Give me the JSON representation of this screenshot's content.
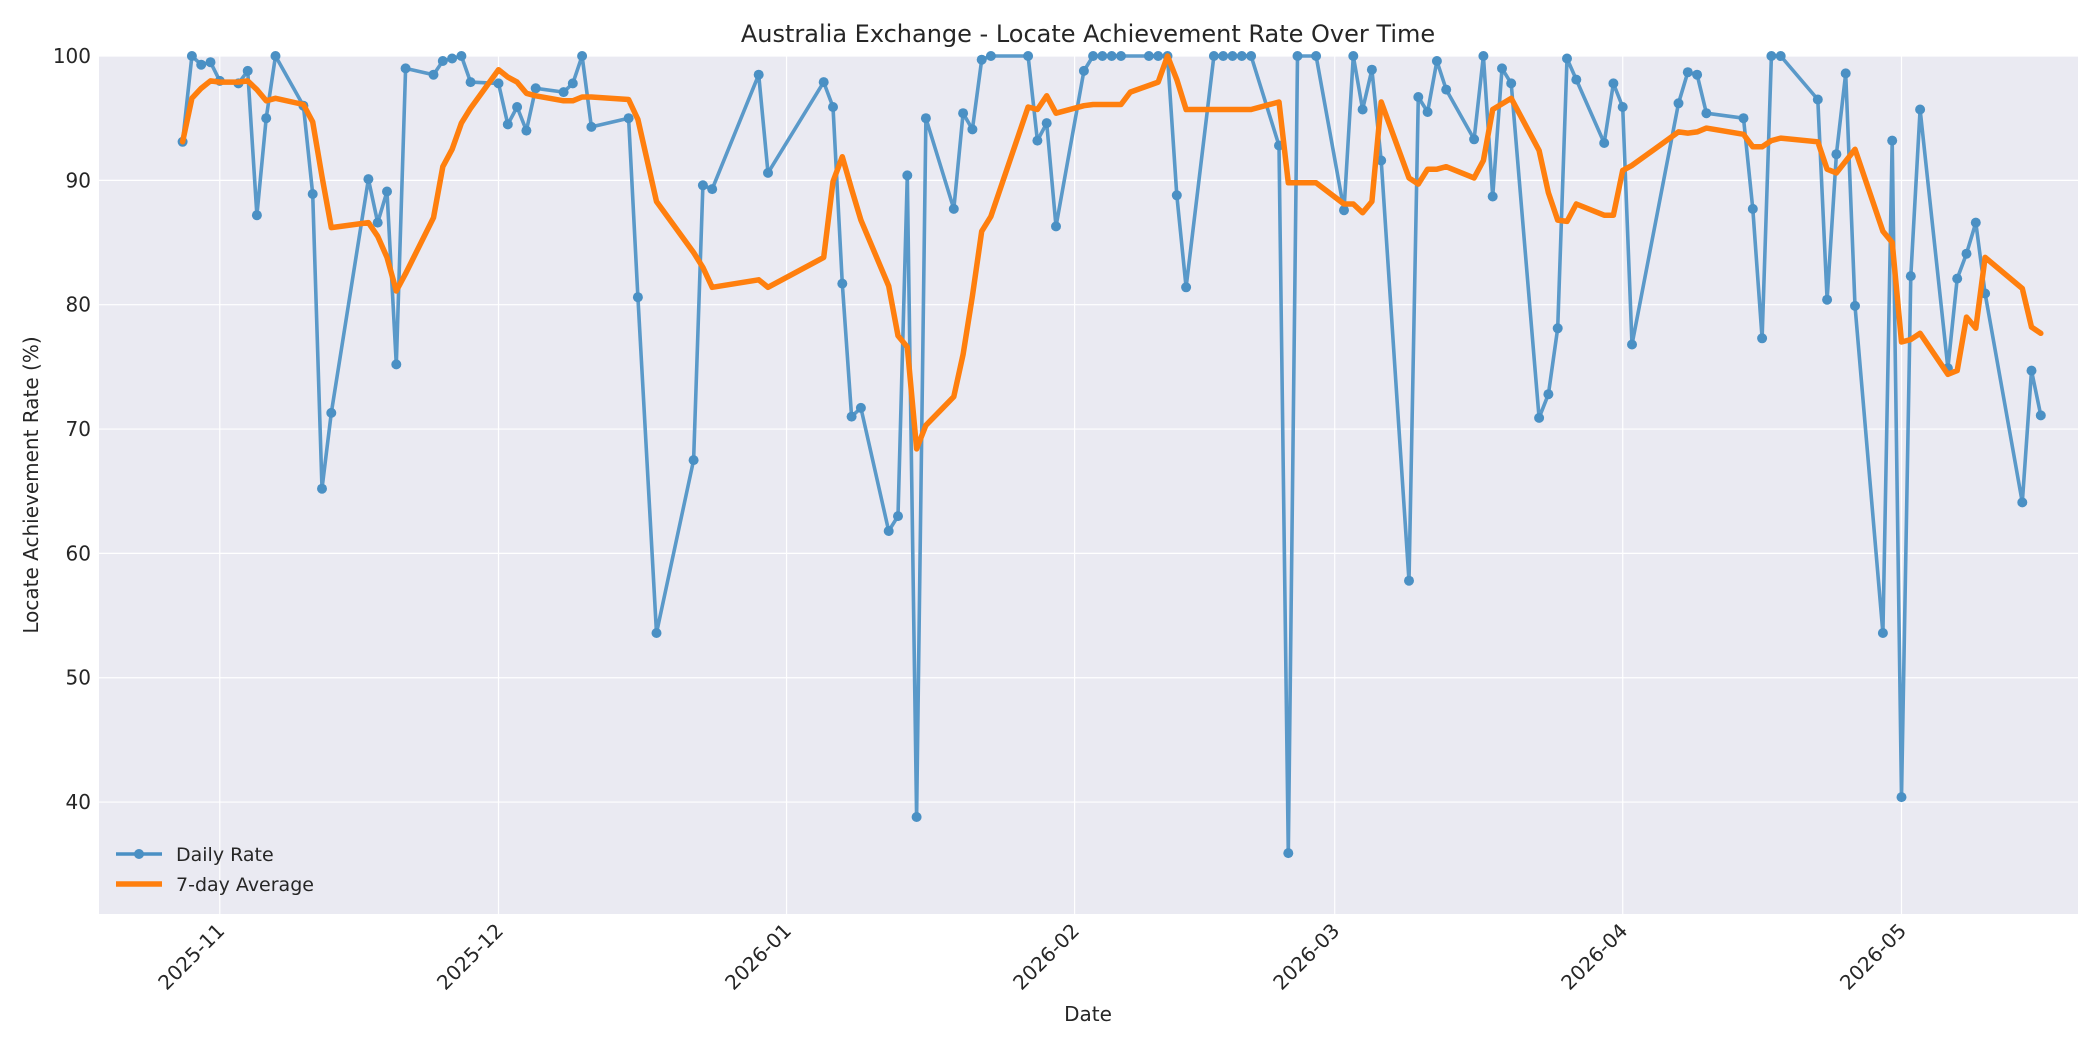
{
  "chart_data": {
    "type": "line",
    "title": "Australia Exchange - Locate Achievement Rate Over Time",
    "xlabel": "Date",
    "ylabel": "Locate Achievement Rate (%)",
    "xlim": [
      "2025-10-19",
      "2026-05-20"
    ],
    "ylim": [
      31,
      100
    ],
    "yticks": [
      40,
      50,
      60,
      70,
      80,
      90,
      100
    ],
    "xticks": [
      "2025-11-01",
      "2025-12-01",
      "2026-01-01",
      "2026-02-01",
      "2026-03-01",
      "2026-04-01",
      "2026-05-01"
    ],
    "xtick_labels": [
      "2025-11",
      "2025-12",
      "2026-01",
      "2026-02",
      "2026-03",
      "2026-04",
      "2026-05"
    ],
    "grid": true,
    "legend_position": "lower-left",
    "series": [
      {
        "name": "Daily Rate",
        "color": "#4a90c4",
        "style": "line-with-markers",
        "points": [
          [
            "2025-10-28",
            93.1
          ],
          [
            "2025-10-29",
            100.0
          ],
          [
            "2025-10-30",
            99.3
          ],
          [
            "2025-10-31",
            99.5
          ],
          [
            "2025-11-01",
            98.0
          ],
          [
            "2025-11-03",
            97.8
          ],
          [
            "2025-11-04",
            98.8
          ],
          [
            "2025-11-05",
            87.2
          ],
          [
            "2025-11-06",
            95.0
          ],
          [
            "2025-11-07",
            100.0
          ],
          [
            "2025-11-10",
            96.0
          ],
          [
            "2025-11-11",
            88.9
          ],
          [
            "2025-11-12",
            65.2
          ],
          [
            "2025-11-13",
            71.3
          ],
          [
            "2025-11-17",
            90.1
          ],
          [
            "2025-11-18",
            86.6
          ],
          [
            "2025-11-19",
            89.1
          ],
          [
            "2025-11-20",
            75.2
          ],
          [
            "2025-11-21",
            99.0
          ],
          [
            "2025-11-24",
            98.5
          ],
          [
            "2025-11-25",
            99.6
          ],
          [
            "2025-11-26",
            99.8
          ],
          [
            "2025-11-27",
            100.0
          ],
          [
            "2025-11-28",
            97.9
          ],
          [
            "2025-12-01",
            97.8
          ],
          [
            "2025-12-02",
            94.5
          ],
          [
            "2025-12-03",
            95.9
          ],
          [
            "2025-12-04",
            94.0
          ],
          [
            "2025-12-05",
            97.4
          ],
          [
            "2025-12-08",
            97.1
          ],
          [
            "2025-12-09",
            97.8
          ],
          [
            "2025-12-10",
            100.0
          ],
          [
            "2025-12-11",
            94.3
          ],
          [
            "2025-12-15",
            95.0
          ],
          [
            "2025-12-16",
            80.6
          ],
          [
            "2025-12-18",
            53.6
          ],
          [
            "2025-12-22",
            67.5
          ],
          [
            "2025-12-23",
            89.6
          ],
          [
            "2025-12-24",
            89.3
          ],
          [
            "2025-12-29",
            98.5
          ],
          [
            "2025-12-30",
            90.6
          ],
          [
            "2026-01-05",
            97.9
          ],
          [
            "2026-01-06",
            95.9
          ],
          [
            "2026-01-07",
            81.7
          ],
          [
            "2026-01-08",
            71.0
          ],
          [
            "2026-01-09",
            71.7
          ],
          [
            "2026-01-12",
            61.8
          ],
          [
            "2026-01-13",
            63.0
          ],
          [
            "2026-01-14",
            90.4
          ],
          [
            "2026-01-15",
            38.8
          ],
          [
            "2026-01-16",
            95.0
          ],
          [
            "2026-01-19",
            87.7
          ],
          [
            "2026-01-20",
            95.4
          ],
          [
            "2026-01-21",
            94.1
          ],
          [
            "2026-01-22",
            99.7
          ],
          [
            "2026-01-23",
            100.0
          ],
          [
            "2026-01-27",
            100.0
          ],
          [
            "2026-01-28",
            93.2
          ],
          [
            "2026-01-29",
            94.6
          ],
          [
            "2026-01-30",
            86.3
          ],
          [
            "2026-02-02",
            98.8
          ],
          [
            "2026-02-03",
            100.0
          ],
          [
            "2026-02-04",
            100.0
          ],
          [
            "2026-02-05",
            100.0
          ],
          [
            "2026-02-06",
            100.0
          ],
          [
            "2026-02-09",
            100.0
          ],
          [
            "2026-02-10",
            100.0
          ],
          [
            "2026-02-11",
            100.0
          ],
          [
            "2026-02-12",
            88.8
          ],
          [
            "2026-02-13",
            81.4
          ],
          [
            "2026-02-16",
            100.0
          ],
          [
            "2026-02-17",
            100.0
          ],
          [
            "2026-02-18",
            100.0
          ],
          [
            "2026-02-19",
            100.0
          ],
          [
            "2026-02-20",
            100.0
          ],
          [
            "2026-02-23",
            92.8
          ],
          [
            "2026-02-24",
            35.9
          ],
          [
            "2026-02-25",
            100.0
          ],
          [
            "2026-02-27",
            100.0
          ],
          [
            "2026-03-02",
            87.6
          ],
          [
            "2026-03-03",
            100.0
          ],
          [
            "2026-03-04",
            95.7
          ],
          [
            "2026-03-05",
            98.9
          ],
          [
            "2026-03-06",
            91.6
          ],
          [
            "2026-03-09",
            57.8
          ],
          [
            "2026-03-10",
            96.7
          ],
          [
            "2026-03-11",
            95.5
          ],
          [
            "2026-03-12",
            99.6
          ],
          [
            "2026-03-13",
            97.3
          ],
          [
            "2026-03-16",
            93.3
          ],
          [
            "2026-03-17",
            100.0
          ],
          [
            "2026-03-18",
            88.7
          ],
          [
            "2026-03-19",
            99.0
          ],
          [
            "2026-03-20",
            97.8
          ],
          [
            "2026-03-23",
            70.9
          ],
          [
            "2026-03-24",
            72.8
          ],
          [
            "2026-03-25",
            78.1
          ],
          [
            "2026-03-26",
            99.8
          ],
          [
            "2026-03-27",
            98.1
          ],
          [
            "2026-03-30",
            93.0
          ],
          [
            "2026-03-31",
            97.8
          ],
          [
            "2026-04-01",
            95.9
          ],
          [
            "2026-04-02",
            76.8
          ],
          [
            "2026-04-07",
            96.2
          ],
          [
            "2026-04-08",
            98.7
          ],
          [
            "2026-04-09",
            98.5
          ],
          [
            "2026-04-10",
            95.4
          ],
          [
            "2026-04-14",
            95.0
          ],
          [
            "2026-04-15",
            87.7
          ],
          [
            "2026-04-16",
            77.3
          ],
          [
            "2026-04-17",
            100.0
          ],
          [
            "2026-04-18",
            100.0
          ],
          [
            "2026-04-22",
            96.5
          ],
          [
            "2026-04-23",
            80.4
          ],
          [
            "2026-04-24",
            92.1
          ],
          [
            "2026-04-25",
            98.6
          ],
          [
            "2026-04-26",
            79.9
          ],
          [
            "2026-04-29",
            53.6
          ],
          [
            "2026-04-30",
            93.2
          ],
          [
            "2026-05-01",
            40.4
          ],
          [
            "2026-05-02",
            82.3
          ],
          [
            "2026-05-03",
            95.7
          ],
          [
            "2026-05-06",
            74.9
          ],
          [
            "2026-05-07",
            82.1
          ],
          [
            "2026-05-08",
            84.1
          ],
          [
            "2026-05-09",
            86.6
          ],
          [
            "2026-05-10",
            80.9
          ],
          [
            "2026-05-14",
            64.1
          ],
          [
            "2026-05-15",
            74.7
          ],
          [
            "2026-05-16",
            71.1
          ]
        ]
      },
      {
        "name": "7-day Average",
        "color": "#ff7f0e",
        "style": "line",
        "points": [
          [
            "2025-10-28",
            93.1
          ],
          [
            "2025-10-29",
            96.6
          ],
          [
            "2025-10-30",
            97.4
          ],
          [
            "2025-10-31",
            98.0
          ],
          [
            "2025-11-01",
            97.9
          ],
          [
            "2025-11-03",
            97.9
          ],
          [
            "2025-11-04",
            98.0
          ],
          [
            "2025-11-05",
            97.3
          ],
          [
            "2025-11-06",
            96.4
          ],
          [
            "2025-11-07",
            96.6
          ],
          [
            "2025-11-10",
            96.1
          ],
          [
            "2025-11-11",
            94.7
          ],
          [
            "2025-11-12",
            90.3
          ],
          [
            "2025-11-13",
            86.2
          ],
          [
            "2025-11-17",
            86.6
          ],
          [
            "2025-11-18",
            85.5
          ],
          [
            "2025-11-19",
            83.8
          ],
          [
            "2025-11-20",
            81.1
          ],
          [
            "2025-11-21",
            82.5
          ],
          [
            "2025-11-24",
            87.0
          ],
          [
            "2025-11-25",
            91.1
          ],
          [
            "2025-11-26",
            92.5
          ],
          [
            "2025-11-27",
            94.6
          ],
          [
            "2025-11-28",
            95.8
          ],
          [
            "2025-12-01",
            98.9
          ],
          [
            "2025-12-02",
            98.3
          ],
          [
            "2025-12-03",
            97.9
          ],
          [
            "2025-12-04",
            97.0
          ],
          [
            "2025-12-05",
            96.8
          ],
          [
            "2025-12-08",
            96.4
          ],
          [
            "2025-12-09",
            96.4
          ],
          [
            "2025-12-10",
            96.7
          ],
          [
            "2025-12-11",
            96.7
          ],
          [
            "2025-12-15",
            96.5
          ],
          [
            "2025-12-16",
            94.9
          ],
          [
            "2025-12-18",
            88.3
          ],
          [
            "2025-12-22",
            84.2
          ],
          [
            "2025-12-23",
            83.0
          ],
          [
            "2025-12-24",
            81.4
          ],
          [
            "2025-12-29",
            82.0
          ],
          [
            "2025-12-30",
            81.4
          ],
          [
            "2026-01-05",
            83.8
          ],
          [
            "2026-01-06",
            89.9
          ],
          [
            "2026-01-07",
            91.9
          ],
          [
            "2026-01-08",
            89.3
          ],
          [
            "2026-01-09",
            86.8
          ],
          [
            "2026-01-12",
            81.5
          ],
          [
            "2026-01-13",
            77.5
          ],
          [
            "2026-01-14",
            76.6
          ],
          [
            "2026-01-15",
            68.4
          ],
          [
            "2026-01-16",
            70.3
          ],
          [
            "2026-01-19",
            72.6
          ],
          [
            "2026-01-20",
            76.0
          ],
          [
            "2026-01-21",
            80.7
          ],
          [
            "2026-01-22",
            85.9
          ],
          [
            "2026-01-23",
            87.1
          ],
          [
            "2026-01-27",
            95.9
          ],
          [
            "2026-01-28",
            95.7
          ],
          [
            "2026-01-29",
            96.8
          ],
          [
            "2026-01-30",
            95.4
          ],
          [
            "2026-02-02",
            96.0
          ],
          [
            "2026-02-03",
            96.1
          ],
          [
            "2026-02-04",
            96.1
          ],
          [
            "2026-02-05",
            96.1
          ],
          [
            "2026-02-06",
            96.1
          ],
          [
            "2026-02-07",
            97.1
          ],
          [
            "2026-02-10",
            97.9
          ],
          [
            "2026-02-11",
            100.0
          ],
          [
            "2026-02-12",
            98.1
          ],
          [
            "2026-02-13",
            95.7
          ],
          [
            "2026-02-16",
            95.7
          ],
          [
            "2026-02-17",
            95.7
          ],
          [
            "2026-02-18",
            95.7
          ],
          [
            "2026-02-19",
            95.7
          ],
          [
            "2026-02-20",
            95.7
          ],
          [
            "2026-02-23",
            96.3
          ],
          [
            "2026-02-24",
            89.8
          ],
          [
            "2026-02-27",
            89.8
          ],
          [
            "2026-03-02",
            88.1
          ],
          [
            "2026-03-03",
            88.1
          ],
          [
            "2026-03-04",
            87.4
          ],
          [
            "2026-03-05",
            88.3
          ],
          [
            "2026-03-06",
            96.3
          ],
          [
            "2026-03-09",
            90.2
          ],
          [
            "2026-03-10",
            89.7
          ],
          [
            "2026-03-11",
            90.9
          ],
          [
            "2026-03-12",
            90.9
          ],
          [
            "2026-03-13",
            91.1
          ],
          [
            "2026-03-16",
            90.2
          ],
          [
            "2026-03-17",
            91.6
          ],
          [
            "2026-03-18",
            95.7
          ],
          [
            "2026-03-20",
            96.6
          ],
          [
            "2026-03-23",
            92.4
          ],
          [
            "2026-03-24",
            89.0
          ],
          [
            "2026-03-25",
            86.8
          ],
          [
            "2026-03-26",
            86.7
          ],
          [
            "2026-03-27",
            88.1
          ],
          [
            "2026-03-30",
            87.2
          ],
          [
            "2026-03-31",
            87.2
          ],
          [
            "2026-04-01",
            90.8
          ],
          [
            "2026-04-02",
            91.2
          ],
          [
            "2026-04-07",
            93.9
          ],
          [
            "2026-04-08",
            93.8
          ],
          [
            "2026-04-09",
            93.9
          ],
          [
            "2026-04-10",
            94.2
          ],
          [
            "2026-04-14",
            93.7
          ],
          [
            "2026-04-15",
            92.7
          ],
          [
            "2026-04-16",
            92.7
          ],
          [
            "2026-04-17",
            93.2
          ],
          [
            "2026-04-18",
            93.4
          ],
          [
            "2026-04-22",
            93.1
          ],
          [
            "2026-04-23",
            90.9
          ],
          [
            "2026-04-24",
            90.6
          ],
          [
            "2026-04-26",
            92.5
          ],
          [
            "2026-04-29",
            85.9
          ],
          [
            "2026-04-30",
            85.0
          ],
          [
            "2026-05-01",
            77.0
          ],
          [
            "2026-05-02",
            77.2
          ],
          [
            "2026-05-03",
            77.7
          ],
          [
            "2026-05-06",
            74.4
          ],
          [
            "2026-05-07",
            74.7
          ],
          [
            "2026-05-08",
            79.0
          ],
          [
            "2026-05-09",
            78.1
          ],
          [
            "2026-05-10",
            83.8
          ],
          [
            "2026-05-14",
            81.3
          ],
          [
            "2026-05-15",
            78.2
          ],
          [
            "2026-05-16",
            77.7
          ]
        ]
      }
    ]
  }
}
